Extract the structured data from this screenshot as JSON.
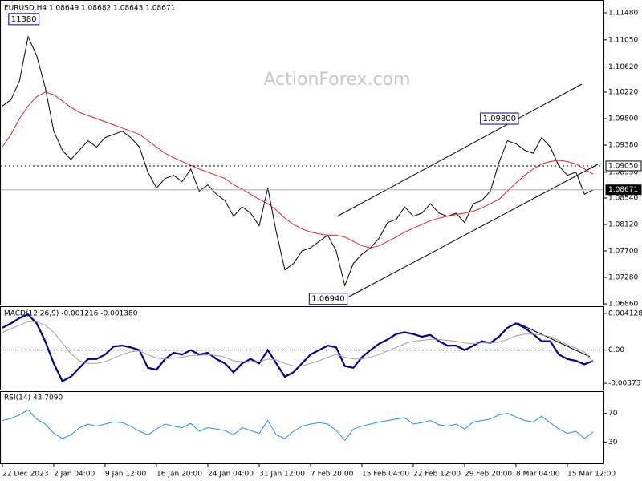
{
  "chart_data": {
    "type": "line",
    "title": "EURUSD,H4 1.08649 1.08682 1.08643 1.08671",
    "watermark": "ActionForex.com",
    "categories": [
      "22 Dec 2023",
      null,
      null,
      null,
      null,
      null,
      "2 Jan 04:00",
      null,
      null,
      null,
      null,
      null,
      "9 Jan 12:00",
      null,
      null,
      null,
      null,
      null,
      "16 Jan 20:00",
      null,
      null,
      null,
      null,
      null,
      "24 Jan 04:00",
      null,
      null,
      null,
      null,
      null,
      "31 Jan 12:00",
      null,
      null,
      null,
      null,
      null,
      "7 Feb 20:00",
      null,
      null,
      null,
      null,
      null,
      "15 Feb 04:00",
      null,
      null,
      null,
      null,
      null,
      "22 Feb 12:00",
      null,
      null,
      null,
      null,
      null,
      "29 Feb 20:00",
      null,
      null,
      null,
      null,
      null,
      "8 Mar 04:00",
      null,
      null,
      null,
      null,
      null,
      "15 Mar 12:00",
      null,
      null,
      null
    ],
    "series": [
      {
        "color": "#000000",
        "values": [
          1.1,
          1.101,
          1.104,
          1.111,
          1.108,
          1.103,
          1.096,
          1.093,
          1.0915,
          1.093,
          1.0945,
          1.0935,
          1.095,
          1.0955,
          1.096,
          1.095,
          1.0935,
          1.0895,
          1.087,
          1.0885,
          1.089,
          1.088,
          1.09,
          1.0865,
          1.0875,
          1.086,
          1.085,
          1.0825,
          1.084,
          1.083,
          1.081,
          1.087,
          1.08,
          1.074,
          1.075,
          1.077,
          1.0775,
          1.0785,
          1.0795,
          1.077,
          1.0715,
          1.075,
          1.0765,
          1.0775,
          1.079,
          1.0815,
          1.082,
          1.084,
          1.0825,
          1.083,
          1.0845,
          1.083,
          1.0825,
          1.083,
          1.0815,
          1.0845,
          1.085,
          1.0865,
          1.091,
          1.0945,
          1.094,
          1.093,
          1.0925,
          1.095,
          1.0935,
          1.0905,
          1.089,
          1.0895,
          1.086,
          1.08671
        ]
      },
      {
        "color": "#e8232a",
        "values": [
          1.0935,
          1.0955,
          1.098,
          1.1,
          1.1015,
          1.1022,
          1.1018,
          1.1008,
          1.0998,
          1.099,
          1.0985,
          1.098,
          1.0975,
          1.097,
          1.0965,
          1.096,
          1.0955,
          1.0945,
          1.0935,
          1.0925,
          1.0918,
          1.0912,
          1.0906,
          1.09,
          1.0895,
          1.089,
          1.0885,
          1.0875,
          1.0868,
          1.086,
          1.0852,
          1.0845,
          1.0835,
          1.0822,
          1.0812,
          1.0805,
          1.08,
          1.0797,
          1.0795,
          1.0795,
          1.0792,
          1.0785,
          1.0778,
          1.0775,
          1.0778,
          1.0785,
          1.0792,
          1.08,
          1.0806,
          1.0812,
          1.0818,
          1.0822,
          1.0825,
          1.0828,
          1.083,
          1.0833,
          1.0838,
          1.0845,
          1.0852,
          1.0865,
          1.0878,
          1.089,
          1.09,
          1.0908,
          1.0912,
          1.0914,
          1.0912,
          1.0908,
          1.09,
          1.0892
        ]
      }
    ],
    "ylim": [
      1.06835,
      1.11671
    ],
    "yticks": [
      {
        "value": 1.1148,
        "label": "1.11480"
      },
      {
        "value": 1.1105,
        "label": "1.11050"
      },
      {
        "value": 1.1062,
        "label": "1.10620"
      },
      {
        "value": 1.1022,
        "label": "1.10220"
      },
      {
        "value": 1.098,
        "label": "1.09800"
      },
      {
        "value": 1.0938,
        "label": "1.09380"
      },
      {
        "value": 1.0895,
        "label": "1.08950"
      },
      {
        "value": 1.0854,
        "label": "1.08540"
      },
      {
        "value": 1.0812,
        "label": "1.08120"
      },
      {
        "value": 1.077,
        "label": "1.07700"
      },
      {
        "value": 1.0728,
        "label": "1.07280"
      },
      {
        "value": 1.0686,
        "label": "1.06860"
      }
    ],
    "levels": [
      {
        "value": 1.0905,
        "label": "1.09050",
        "dashed": true
      },
      {
        "value": 1.08671,
        "label": "1.08671",
        "dashed": false
      }
    ],
    "annotations": [
      {
        "index": 4,
        "value": 1.1138,
        "label": "11380"
      },
      {
        "index": 60,
        "value": 1.098,
        "label": "1.09800"
      },
      {
        "index": 40,
        "value": 1.0694,
        "label": "1.06940"
      }
    ],
    "indicators": [
      {
        "type": "line",
        "title": "MACD(12,26,9) -0.001216 -0.001380",
        "ylim": [
          -0.00454,
          0.00484
        ],
        "yticks": [
          0.004128,
          {
            "value": 0,
            "label": "0.00"
          },
          -0.003737
        ],
        "zero_line": true,
        "series": [
          {
            "color": "#00008b",
            "values": [
              0.0025,
              0.003,
              0.0036,
              0.004,
              0.003,
              0.001,
              -0.0015,
              -0.0035,
              -0.003,
              -0.002,
              -0.001,
              -0.001,
              -0.0005,
              0.0004,
              0.0005,
              0.0003,
              0.0,
              -0.002,
              -0.0022,
              -0.001,
              -0.0003,
              -0.0005,
              0.0,
              -0.0005,
              -0.0003,
              -0.001,
              -0.0015,
              -0.0025,
              -0.0015,
              -0.001,
              -0.0015,
              0.0,
              -0.0015,
              -0.003,
              -0.0025,
              -0.0015,
              -0.0005,
              0.0,
              0.0005,
              0.0003,
              -0.0018,
              -0.002,
              -0.0008,
              0.0,
              0.0007,
              0.0012,
              0.0018,
              0.002,
              0.0018,
              0.0015,
              0.0017,
              0.001,
              0.0005,
              0.0005,
              0.0,
              0.0005,
              0.001,
              0.0008,
              0.0015,
              0.0025,
              0.003,
              0.0025,
              0.0018,
              0.001,
              0.001,
              -0.0005,
              -0.001,
              -0.0012,
              -0.0016,
              -0.001216
            ]
          },
          {
            "color": "#a0a0a0",
            "values": [
              0.002,
              0.0024,
              0.0028,
              0.0032,
              0.0032,
              0.0028,
              0.002,
              0.0008,
              -0.0004,
              -0.0012,
              -0.0015,
              -0.0015,
              -0.0013,
              -0.0009,
              -0.0005,
              -0.0002,
              -0.0001,
              -0.0005,
              -0.0009,
              -0.001,
              -0.0009,
              -0.0008,
              -0.0006,
              -0.0006,
              -0.0005,
              -0.0006,
              -0.0008,
              -0.0012,
              -0.0013,
              -0.0013,
              -0.0013,
              -0.001,
              -0.0011,
              -0.0015,
              -0.0018,
              -0.0018,
              -0.0015,
              -0.0012,
              -0.0008,
              -0.0005,
              -0.0008,
              -0.001,
              -0.001,
              -0.0008,
              -0.0005,
              -0.0001,
              0.0003,
              0.0007,
              0.001,
              0.0011,
              0.0012,
              0.0012,
              0.0011,
              0.001,
              0.0008,
              0.0007,
              0.0008,
              0.0008,
              0.0009,
              0.0012,
              0.0016,
              0.0018,
              0.0018,
              0.0017,
              0.0015,
              0.0011,
              0.0006,
              0.0002,
              -0.0002,
              -0.00138
            ]
          }
        ]
      },
      {
        "type": "line",
        "title": "RSI(14) 43.7090",
        "ylim": [
          0,
          100
        ],
        "yticks": [
          70,
          30
        ],
        "zero_line": false,
        "series": [
          {
            "color": "#1e90ff",
            "values": [
              60,
              63,
              68,
              75,
              62,
              55,
              42,
              35,
              40,
              50,
              55,
              52,
              55,
              58,
              57,
              52,
              45,
              40,
              48,
              55,
              52,
              50,
              56,
              45,
              50,
              48,
              46,
              40,
              50,
              46,
              42,
              60,
              40,
              35,
              45,
              52,
              55,
              57,
              55,
              46,
              32,
              48,
              52,
              55,
              58,
              60,
              62,
              64,
              55,
              57,
              60,
              54,
              52,
              55,
              48,
              58,
              60,
              62,
              68,
              70,
              65,
              60,
              58,
              66,
              57,
              48,
              42,
              45,
              35,
              43.709
            ]
          }
        ]
      }
    ]
  }
}
